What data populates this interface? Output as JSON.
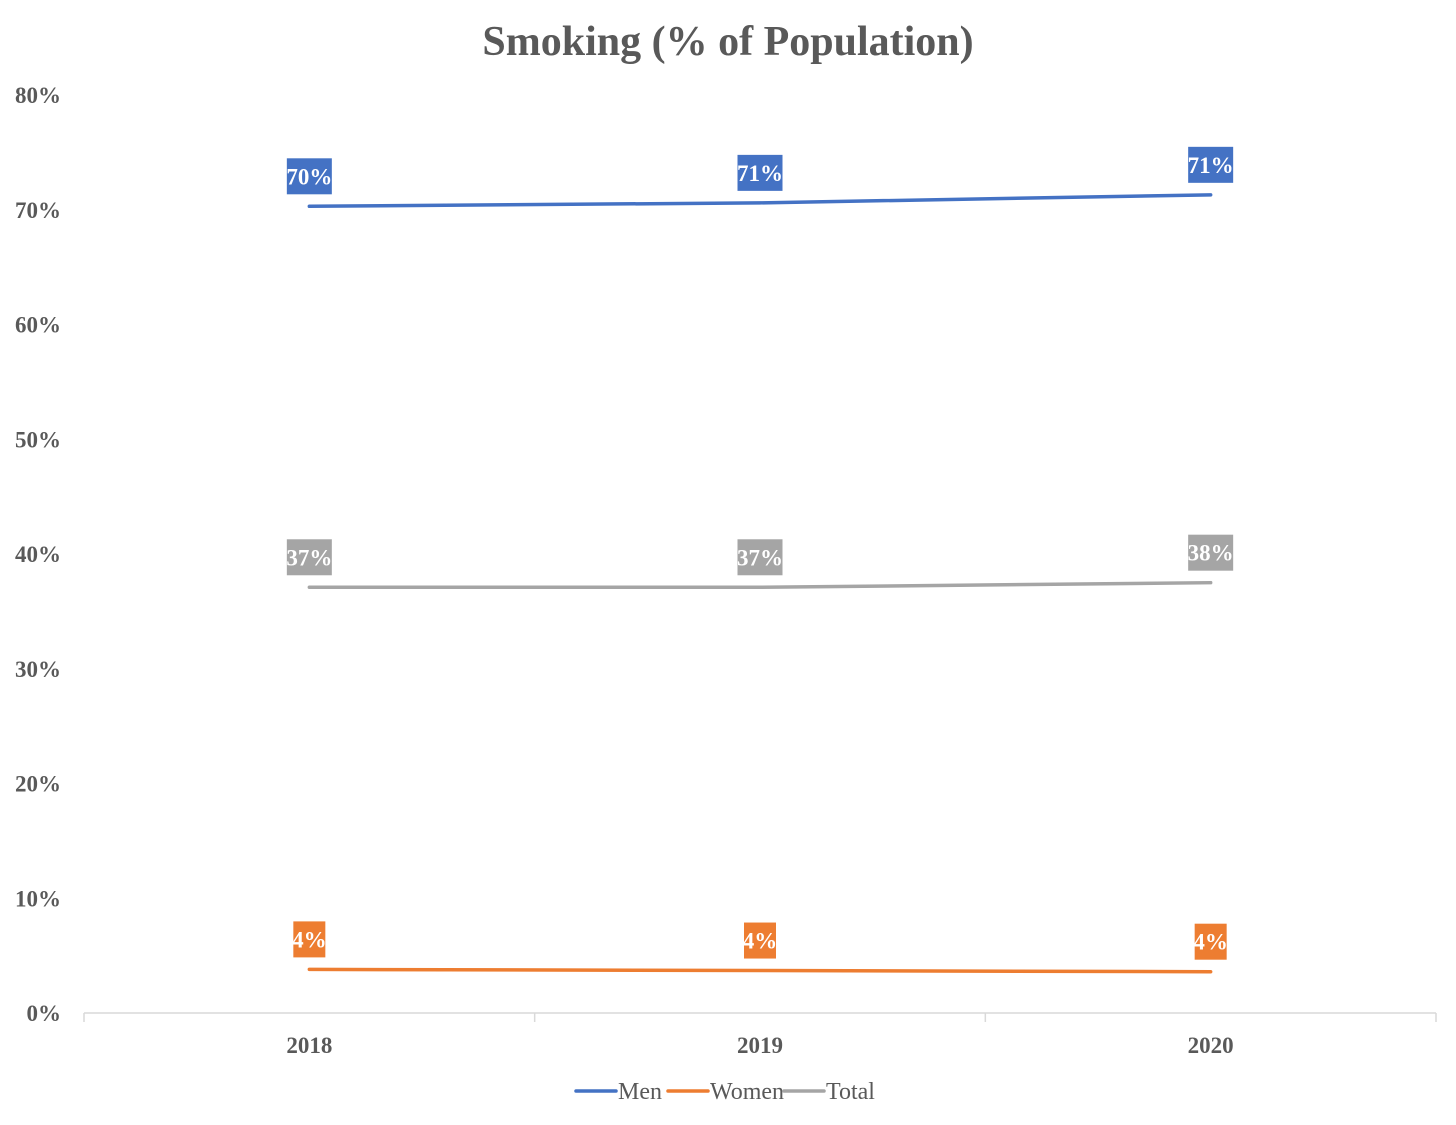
{
  "chart_data": {
    "type": "line",
    "title": "Smoking (% of Population)",
    "xlabel": "",
    "ylabel": "",
    "categories": [
      "2018",
      "2019",
      "2020"
    ],
    "ylim": [
      0,
      80
    ],
    "yticks": [
      "0%",
      "10%",
      "20%",
      "30%",
      "40%",
      "50%",
      "60%",
      "70%",
      "80%"
    ],
    "grid": false,
    "legend_position": "bottom",
    "series": [
      {
        "name": "Men",
        "color": "#4472C4",
        "values": [
          70.3,
          70.6,
          71.3
        ],
        "labels": [
          "70%",
          "71%",
          "71%"
        ]
      },
      {
        "name": "Women",
        "color": "#ED7D31",
        "values": [
          3.8,
          3.7,
          3.6
        ],
        "labels": [
          "4%",
          "4%",
          "4%"
        ]
      },
      {
        "name": "Total",
        "color": "#A5A5A5",
        "values": [
          37.1,
          37.1,
          37.5
        ],
        "labels": [
          "37%",
          "37%",
          "38%"
        ]
      }
    ]
  }
}
